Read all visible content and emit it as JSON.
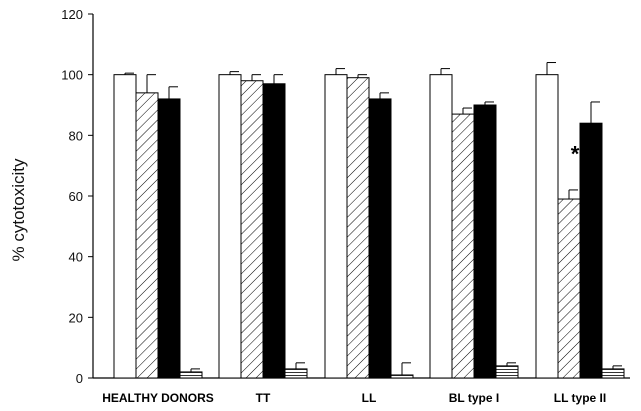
{
  "chart_data": {
    "type": "bar",
    "title": "",
    "xlabel": "",
    "ylabel": "% cytotoxicity",
    "ylim": [
      0,
      120
    ],
    "yticks": [
      0,
      20,
      40,
      60,
      80,
      100,
      120
    ],
    "grid": false,
    "legend": "none",
    "categories": [
      "HEALTHY DONORS",
      "TT",
      "LL",
      "BL type I",
      "LL type II"
    ],
    "series": [
      {
        "fill": "white",
        "values": [
          100,
          100,
          100,
          100,
          100
        ],
        "errors": [
          0.5,
          1,
          2,
          2,
          4
        ]
      },
      {
        "fill": "hatched",
        "values": [
          94,
          98,
          99,
          87,
          59
        ],
        "errors": [
          6,
          2,
          1,
          2,
          3
        ]
      },
      {
        "fill": "black",
        "values": [
          92,
          97,
          92,
          90,
          84
        ],
        "errors": [
          4,
          3,
          2,
          1,
          7
        ]
      },
      {
        "fill": "striped",
        "values": [
          2,
          3,
          1,
          4,
          3
        ],
        "errors": [
          1,
          2,
          4,
          1,
          1
        ]
      }
    ],
    "annotations": [
      {
        "text": "*",
        "category": "LL type II",
        "value": 74
      }
    ]
  },
  "colors": {
    "axis": "#000000",
    "black_bar": "#000000",
    "white_bar": "#ffffff"
  }
}
